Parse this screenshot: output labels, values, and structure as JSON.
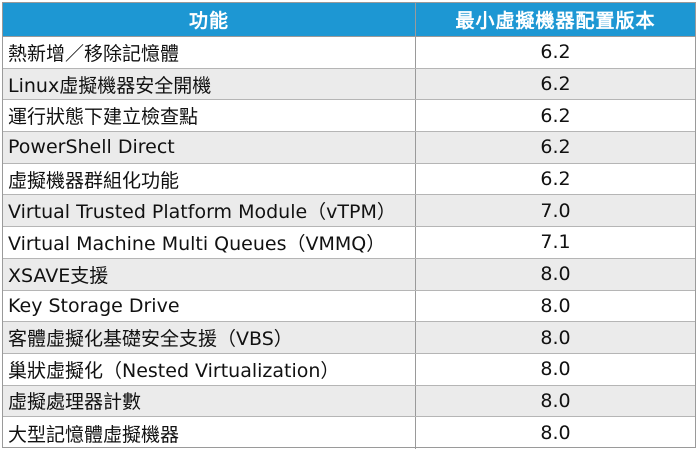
{
  "table": {
    "headers": {
      "feature": "功能",
      "version": "最小虛擬機器配置版本"
    },
    "rows": [
      {
        "feature": "熱新增／移除記憶體",
        "version": "6.2"
      },
      {
        "feature": "Linux虛擬機器安全開機",
        "version": "6.2"
      },
      {
        "feature": "運行狀態下建立檢查點",
        "version": "6.2"
      },
      {
        "feature": "PowerShell Direct",
        "version": "6.2"
      },
      {
        "feature": "虛擬機器群組化功能",
        "version": "6.2"
      },
      {
        "feature": "Virtual Trusted Platform Module（vTPM）",
        "version": "7.0"
      },
      {
        "feature": "Virtual Machine Multi Queues（VMMQ）",
        "version": "7.1"
      },
      {
        "feature": "XSAVE支援",
        "version": "8.0"
      },
      {
        "feature": "Key Storage Drive",
        "version": "8.0"
      },
      {
        "feature": "客體虛擬化基礎安全支援（VBS）",
        "version": "8.0"
      },
      {
        "feature": "巢狀虛擬化（Nested Virtualization）",
        "version": "8.0"
      },
      {
        "feature": "虛擬處理器計數",
        "version": "8.0"
      },
      {
        "feature": "大型記憶體虛擬機器",
        "version": "8.0"
      }
    ],
    "colors": {
      "header_bg": "#1d97d3",
      "header_text": "#ffffff",
      "alt_row_bg": "#ebebeb",
      "border": "#9a9a9a"
    }
  }
}
